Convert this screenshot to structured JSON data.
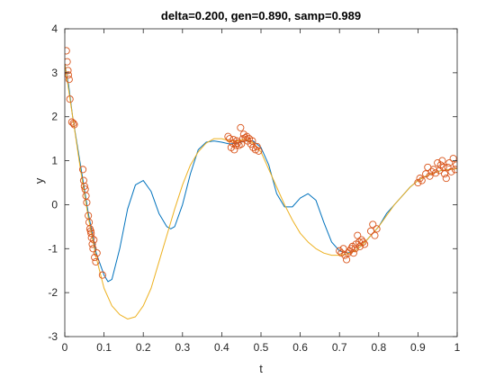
{
  "chart_data": {
    "type": "line",
    "title": "delta=0.200, gen=0.890, samp=0.989",
    "xlabel": "t",
    "ylabel": "y",
    "xlim": [
      0,
      1
    ],
    "ylim": [
      -3,
      4
    ],
    "xticks": [
      "0",
      "0.1",
      "0.2",
      "0.3",
      "0.4",
      "0.5",
      "0.6",
      "0.7",
      "0.8",
      "0.9",
      "1"
    ],
    "yticks": [
      "-3",
      "-2",
      "-1",
      "0",
      "1",
      "2",
      "3",
      "4"
    ],
    "grid": false,
    "legend": "none",
    "series": [
      {
        "color": "#0072BD",
        "style": "line",
        "x": [
          0,
          0.01,
          0.02,
          0.04,
          0.06,
          0.08,
          0.1,
          0.11,
          0.12,
          0.14,
          0.16,
          0.18,
          0.2,
          0.22,
          0.24,
          0.26,
          0.27,
          0.28,
          0.3,
          0.32,
          0.34,
          0.36,
          0.38,
          0.4,
          0.42,
          0.44,
          0.46,
          0.48,
          0.5,
          0.52,
          0.54,
          0.56,
          0.58,
          0.6,
          0.62,
          0.64,
          0.66,
          0.68,
          0.7,
          0.72,
          0.74,
          0.76,
          0.78,
          0.8,
          0.82,
          0.84,
          0.86,
          0.88,
          0.9,
          0.92,
          0.94,
          0.96,
          0.98,
          1
        ],
        "y": [
          3.2,
          2.7,
          2.0,
          0.9,
          -0.2,
          -1.1,
          -1.6,
          -1.75,
          -1.7,
          -1.0,
          -0.1,
          0.45,
          0.55,
          0.3,
          -0.2,
          -0.5,
          -0.55,
          -0.5,
          0.0,
          0.7,
          1.25,
          1.42,
          1.45,
          1.42,
          1.38,
          1.4,
          1.45,
          1.45,
          1.3,
          0.9,
          0.25,
          -0.05,
          -0.05,
          0.15,
          0.25,
          0.1,
          -0.4,
          -0.85,
          -1.05,
          -1.1,
          -1.05,
          -0.9,
          -0.7,
          -0.5,
          -0.2,
          0.0,
          0.2,
          0.4,
          0.55,
          0.65,
          0.72,
          0.78,
          0.8,
          0.82
        ]
      },
      {
        "color": "#EDB120",
        "style": "line",
        "x": [
          0,
          0.02,
          0.04,
          0.06,
          0.08,
          0.1,
          0.12,
          0.14,
          0.16,
          0.18,
          0.2,
          0.22,
          0.24,
          0.26,
          0.28,
          0.3,
          0.32,
          0.34,
          0.36,
          0.38,
          0.4,
          0.42,
          0.44,
          0.46,
          0.48,
          0.5,
          0.52,
          0.54,
          0.56,
          0.58,
          0.6,
          0.62,
          0.64,
          0.66,
          0.68,
          0.7,
          0.72,
          0.74,
          0.76,
          0.78,
          0.8,
          0.82,
          0.84,
          0.86,
          0.88,
          0.9,
          0.92,
          0.94,
          0.96,
          0.98,
          1
        ],
        "y": [
          3.2,
          2.0,
          0.8,
          -0.3,
          -1.2,
          -1.9,
          -2.3,
          -2.5,
          -2.6,
          -2.55,
          -2.3,
          -1.9,
          -1.3,
          -0.7,
          -0.1,
          0.45,
          0.9,
          1.2,
          1.4,
          1.5,
          1.5,
          1.45,
          1.45,
          1.5,
          1.4,
          1.2,
          0.8,
          0.4,
          0.0,
          -0.35,
          -0.65,
          -0.85,
          -1.0,
          -1.1,
          -1.15,
          -1.15,
          -1.12,
          -1.05,
          -0.9,
          -0.7,
          -0.5,
          -0.25,
          0.0,
          0.2,
          0.4,
          0.55,
          0.65,
          0.72,
          0.78,
          0.8,
          0.82
        ]
      },
      {
        "color": "#D95319",
        "style": "markers",
        "x": [
          0.004,
          0.006,
          0.008,
          0.009,
          0.011,
          0.013,
          0.018,
          0.022,
          0.024,
          0.046,
          0.048,
          0.05,
          0.052,
          0.054,
          0.056,
          0.06,
          0.062,
          0.064,
          0.066,
          0.067,
          0.068,
          0.07,
          0.072,
          0.074,
          0.076,
          0.079,
          0.082,
          0.096,
          0.416,
          0.42,
          0.424,
          0.428,
          0.43,
          0.432,
          0.436,
          0.438,
          0.44,
          0.444,
          0.448,
          0.45,
          0.454,
          0.456,
          0.46,
          0.464,
          0.466,
          0.47,
          0.474,
          0.478,
          0.48,
          0.486,
          0.49,
          0.494,
          0.7,
          0.705,
          0.71,
          0.714,
          0.718,
          0.722,
          0.726,
          0.73,
          0.733,
          0.736,
          0.74,
          0.742,
          0.746,
          0.75,
          0.752,
          0.756,
          0.76,
          0.764,
          0.78,
          0.785,
          0.79,
          0.795,
          0.9,
          0.905,
          0.91,
          0.92,
          0.925,
          0.93,
          0.935,
          0.94,
          0.945,
          0.95,
          0.955,
          0.958,
          0.962,
          0.965,
          0.968,
          0.972,
          0.976,
          0.98,
          0.985,
          0.99,
          0.995,
          0.998
        ],
        "y": [
          3.5,
          3.25,
          3.05,
          2.95,
          2.85,
          2.4,
          1.88,
          1.85,
          1.82,
          0.8,
          0.55,
          0.42,
          0.35,
          0.2,
          0.05,
          -0.25,
          -0.4,
          -0.55,
          -0.6,
          -0.65,
          -0.75,
          -0.9,
          -1.0,
          -0.8,
          -1.2,
          -1.3,
          -1.1,
          -1.6,
          1.55,
          1.5,
          1.3,
          1.4,
          1.48,
          1.25,
          1.35,
          1.45,
          1.4,
          1.35,
          1.75,
          1.38,
          1.5,
          1.6,
          1.52,
          1.55,
          1.45,
          1.5,
          1.38,
          1.45,
          1.3,
          1.25,
          1.32,
          1.22,
          -1.05,
          -1.1,
          -1.0,
          -1.15,
          -1.25,
          -1.1,
          -1.05,
          -1.0,
          -0.95,
          -1.1,
          -1.0,
          -0.9,
          -0.7,
          -0.85,
          -0.95,
          -0.8,
          -0.85,
          -0.9,
          -0.6,
          -0.45,
          -0.7,
          -0.55,
          0.5,
          0.6,
          0.55,
          0.7,
          0.85,
          0.65,
          0.75,
          0.8,
          0.72,
          0.95,
          0.78,
          0.9,
          1.0,
          0.85,
          0.7,
          0.6,
          0.85,
          0.95,
          0.75,
          1.05,
          0.8,
          0.9
        ]
      }
    ]
  }
}
